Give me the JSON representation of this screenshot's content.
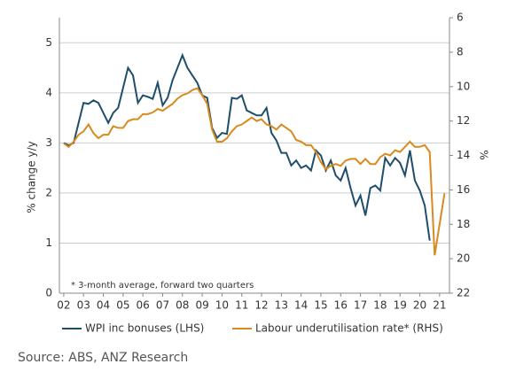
{
  "chart_data": {
    "type": "line",
    "y_label": "% change y/y",
    "y2_label": "%",
    "annotation": "*  3-month average, forward two quarters",
    "source": "Source: ABS, ANZ Research",
    "xlim": [
      2001.78,
      2021.5
    ],
    "xticks": [
      {
        "value": 2002,
        "label": "02"
      },
      {
        "value": 2003,
        "label": "03"
      },
      {
        "value": 2004,
        "label": "04"
      },
      {
        "value": 2005,
        "label": "05"
      },
      {
        "value": 2006,
        "label": "06"
      },
      {
        "value": 2007,
        "label": "07"
      },
      {
        "value": 2008,
        "label": "08"
      },
      {
        "value": 2009,
        "label": "09"
      },
      {
        "value": 2010,
        "label": "10"
      },
      {
        "value": 2011,
        "label": "11"
      },
      {
        "value": 2012,
        "label": "12"
      },
      {
        "value": 2013,
        "label": "13"
      },
      {
        "value": 2014,
        "label": "14"
      },
      {
        "value": 2015,
        "label": "15"
      },
      {
        "value": 2016,
        "label": "16"
      },
      {
        "value": 2017,
        "label": "17"
      },
      {
        "value": 2018,
        "label": "18"
      },
      {
        "value": 2019,
        "label": "19"
      },
      {
        "value": 2020,
        "label": "20"
      },
      {
        "value": 2021,
        "label": "21"
      }
    ],
    "ylim": [
      0,
      5.5
    ],
    "yticks": [
      0,
      1,
      2,
      3,
      4,
      5
    ],
    "y2lim": [
      22,
      6
    ],
    "y2ticks": [
      6,
      8,
      10,
      12,
      14,
      16,
      18,
      20,
      22
    ],
    "grid": true,
    "series": [
      {
        "name": "WPI inc bonuses (LHS)",
        "color": "#1f4e6b",
        "x": [
          2002,
          2002.25,
          2002.5,
          2002.75,
          2003,
          2003.25,
          2003.5,
          2003.75,
          2004,
          2004.25,
          2004.5,
          2004.75,
          2005,
          2005.25,
          2005.5,
          2005.75,
          2006,
          2006.25,
          2006.5,
          2006.75,
          2007,
          2007.25,
          2007.5,
          2007.75,
          2008,
          2008.25,
          2008.5,
          2008.75,
          2009,
          2009.25,
          2009.5,
          2009.75,
          2010,
          2010.25,
          2010.5,
          2010.75,
          2011,
          2011.25,
          2011.5,
          2011.75,
          2012,
          2012.25,
          2012.5,
          2012.75,
          2013,
          2013.25,
          2013.5,
          2013.75,
          2014,
          2014.25,
          2014.5,
          2014.75,
          2015,
          2015.25,
          2015.5,
          2015.75,
          2016,
          2016.25,
          2016.5,
          2016.75,
          2017,
          2017.25,
          2017.5,
          2017.75,
          2018,
          2018.25,
          2018.5,
          2018.75,
          2019,
          2019.25,
          2019.5,
          2019.75,
          2020,
          2020.25,
          2020.5
        ],
        "values": [
          3.0,
          2.95,
          3.0,
          3.4,
          3.8,
          3.78,
          3.85,
          3.8,
          3.6,
          3.4,
          3.6,
          3.7,
          4.1,
          4.5,
          4.35,
          3.8,
          3.95,
          3.92,
          3.88,
          4.2,
          3.75,
          3.9,
          4.25,
          4.5,
          4.75,
          4.5,
          4.35,
          4.2,
          3.95,
          3.9,
          3.3,
          3.1,
          3.2,
          3.18,
          3.9,
          3.88,
          3.95,
          3.65,
          3.6,
          3.55,
          3.55,
          3.7,
          3.2,
          3.05,
          2.8,
          2.8,
          2.55,
          2.65,
          2.5,
          2.55,
          2.45,
          2.85,
          2.75,
          2.45,
          2.65,
          2.35,
          2.25,
          2.5,
          2.1,
          1.75,
          1.95,
          1.55,
          2.1,
          2.15,
          2.05,
          2.7,
          2.55,
          2.7,
          2.6,
          2.35,
          2.85,
          2.25,
          2.05,
          1.75,
          1.05
        ]
      },
      {
        "name": "Labour underutilisation rate* (RHS)",
        "color": "#d98a1e",
        "axis": "y2",
        "x": [
          2002,
          2002.25,
          2002.5,
          2002.75,
          2003,
          2003.25,
          2003.5,
          2003.75,
          2004,
          2004.25,
          2004.5,
          2004.75,
          2005,
          2005.25,
          2005.5,
          2005.75,
          2006,
          2006.25,
          2006.5,
          2006.75,
          2007,
          2007.25,
          2007.5,
          2007.75,
          2008,
          2008.25,
          2008.5,
          2008.75,
          2009,
          2009.25,
          2009.5,
          2009.75,
          2010,
          2010.25,
          2010.5,
          2010.75,
          2011,
          2011.25,
          2011.5,
          2011.75,
          2012,
          2012.25,
          2012.5,
          2012.75,
          2013,
          2013.25,
          2013.5,
          2013.75,
          2014,
          2014.25,
          2014.5,
          2014.75,
          2015,
          2015.25,
          2015.5,
          2015.75,
          2016,
          2016.25,
          2016.5,
          2016.75,
          2017,
          2017.25,
          2017.5,
          2017.75,
          2018,
          2018.25,
          2018.5,
          2018.75,
          2019,
          2019.25,
          2019.5,
          2019.75,
          2020,
          2020.25,
          2020.5,
          2020.75,
          2021,
          2021.25
        ],
        "values": [
          13.3,
          13.5,
          13.2,
          12.8,
          12.6,
          12.2,
          12.7,
          13.0,
          12.8,
          12.8,
          12.3,
          12.4,
          12.4,
          12.0,
          11.9,
          11.9,
          11.6,
          11.6,
          11.5,
          11.3,
          11.4,
          11.2,
          11.0,
          10.7,
          10.5,
          10.4,
          10.2,
          10.1,
          10.5,
          11.0,
          12.5,
          13.2,
          13.2,
          13.0,
          12.6,
          12.3,
          12.2,
          12.0,
          11.8,
          12.0,
          11.9,
          12.2,
          12.3,
          12.5,
          12.2,
          12.4,
          12.6,
          13.1,
          13.2,
          13.4,
          13.4,
          13.8,
          14.4,
          14.8,
          14.6,
          14.5,
          14.6,
          14.3,
          14.2,
          14.2,
          14.5,
          14.2,
          14.5,
          14.5,
          14.1,
          13.9,
          14.0,
          13.7,
          13.8,
          13.5,
          13.2,
          13.5,
          13.5,
          13.4,
          13.8,
          19.8,
          18.0,
          16.2
        ]
      }
    ]
  }
}
